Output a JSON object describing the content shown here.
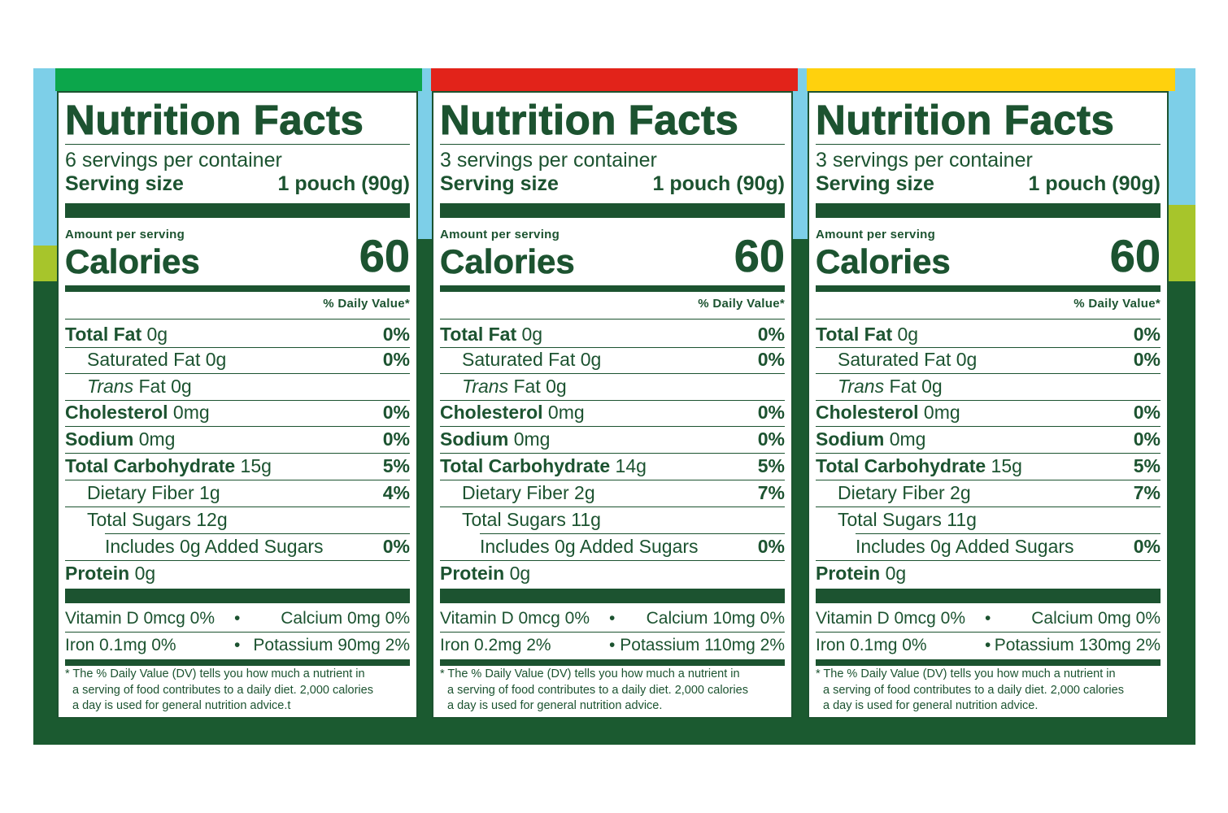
{
  "panels": [
    {
      "title": "Nutrition Facts",
      "servings": "6 servings per container",
      "serving_label": "Serving size",
      "serving_value": "1 pouch (90g)",
      "amount_label": "Amount per serving",
      "calories_label": "Calories",
      "calories": "60",
      "dv_label": "% Daily Value*",
      "rows": [
        {
          "name": "Total Fat",
          "qty": "0g",
          "pct": "0%"
        },
        {
          "name": "Saturated Fat 0g",
          "qty": "",
          "pct": "0%"
        },
        {
          "name": "Trans",
          "qty": "Fat 0g",
          "pct": ""
        },
        {
          "name": "Cholesterol",
          "qty": "0mg",
          "pct": "0%"
        },
        {
          "name": "Sodium",
          "qty": "0mg",
          "pct": "0%"
        },
        {
          "name": "Total Carbohydrate",
          "qty": "15g",
          "pct": "5%"
        },
        {
          "name": "Dietary Fiber 1g",
          "qty": "",
          "pct": "4%"
        },
        {
          "name": "Total Sugars 12g",
          "qty": "",
          "pct": ""
        },
        {
          "name": "Includes 0g Added Sugars",
          "qty": "",
          "pct": "0%"
        },
        {
          "name": "Protein",
          "qty": "0g",
          "pct": ""
        }
      ],
      "vitamins": [
        {
          "left": "Vitamin D 0mcg 0%",
          "right": "Calcium 0mg 0%"
        },
        {
          "left": "Iron 0.1mg 0%",
          "right": "Potassium 90mg 2%"
        }
      ],
      "bullet": "•",
      "footnote": [
        "* The % Daily Value (DV) tells you how much a nutrient in",
        "a serving of food contributes to a daily diet. 2,000 calories",
        "a day is used for general nutrition advice.t"
      ]
    },
    {
      "title": "Nutrition Facts",
      "servings": "3 servings per container",
      "serving_label": "Serving size",
      "serving_value": "1 pouch (90g)",
      "amount_label": "Amount per serving",
      "calories_label": "Calories",
      "calories": "60",
      "dv_label": "% Daily Value*",
      "rows": [
        {
          "name": "Total Fat",
          "qty": "0g",
          "pct": "0%"
        },
        {
          "name": "Saturated Fat 0g",
          "qty": "",
          "pct": "0%"
        },
        {
          "name": "Trans",
          "qty": "Fat 0g",
          "pct": ""
        },
        {
          "name": "Cholesterol",
          "qty": "0mg",
          "pct": "0%"
        },
        {
          "name": "Sodium",
          "qty": "0mg",
          "pct": "0%"
        },
        {
          "name": "Total Carbohydrate",
          "qty": "14g",
          "pct": "5%"
        },
        {
          "name": "Dietary Fiber 2g",
          "qty": "",
          "pct": "7%"
        },
        {
          "name": "Total Sugars 11g",
          "qty": "",
          "pct": ""
        },
        {
          "name": "Includes 0g Added Sugars",
          "qty": "",
          "pct": "0%"
        },
        {
          "name": "Protein",
          "qty": "0g",
          "pct": ""
        }
      ],
      "vitamins": [
        {
          "left": "Vitamin D 0mcg 0%",
          "right": "Calcium 10mg 0%"
        },
        {
          "left": "Iron 0.2mg 2%",
          "right": "Potassium 110mg 2%"
        }
      ],
      "bullet": "•",
      "footnote": [
        "* The % Daily Value (DV) tells you how much a nutrient in",
        "a serving of food contributes to a daily diet. 2,000 calories",
        "a day is used for general nutrition advice."
      ]
    },
    {
      "title": "Nutrition Facts",
      "servings": "3 servings per container",
      "serving_label": "Serving size",
      "serving_value": "1 pouch (90g)",
      "amount_label": "Amount per serving",
      "calories_label": "Calories",
      "calories": "60",
      "dv_label": "% Daily Value*",
      "rows": [
        {
          "name": "Total Fat",
          "qty": "0g",
          "pct": "0%"
        },
        {
          "name": "Saturated Fat 0g",
          "qty": "",
          "pct": "0%"
        },
        {
          "name": "Trans",
          "qty": "Fat 0g",
          "pct": ""
        },
        {
          "name": "Cholesterol",
          "qty": "0mg",
          "pct": "0%"
        },
        {
          "name": "Sodium",
          "qty": "0mg",
          "pct": "0%"
        },
        {
          "name": "Total Carbohydrate",
          "qty": "15g",
          "pct": "5%"
        },
        {
          "name": "Dietary Fiber 2g",
          "qty": "",
          "pct": "7%"
        },
        {
          "name": "Total Sugars 11g",
          "qty": "",
          "pct": ""
        },
        {
          "name": "Includes 0g Added Sugars",
          "qty": "",
          "pct": "0%"
        },
        {
          "name": "Protein",
          "qty": "0g",
          "pct": ""
        }
      ],
      "vitamins": [
        {
          "left": "Vitamin D 0mcg 0%",
          "right": "Calcium 0mg 0%"
        },
        {
          "left": "Iron 0.1mg 0%",
          "right": "Potassium 130mg 2%"
        }
      ],
      "bullet": "•",
      "footnote": [
        "* The % Daily Value (DV) tells you how much a nutrient in",
        "a serving of food contributes to a daily diet. 2,000 calories",
        "a day is used for general nutrition advice."
      ]
    }
  ],
  "colors": {
    "ink": "#1c5330",
    "package_dark": "#1b5a30",
    "sky": "#7dcfe8",
    "lime": "#a7c52b",
    "bar_green": "#0ca64b",
    "bar_red": "#e2231a",
    "bar_yellow": "#ffd10d"
  }
}
